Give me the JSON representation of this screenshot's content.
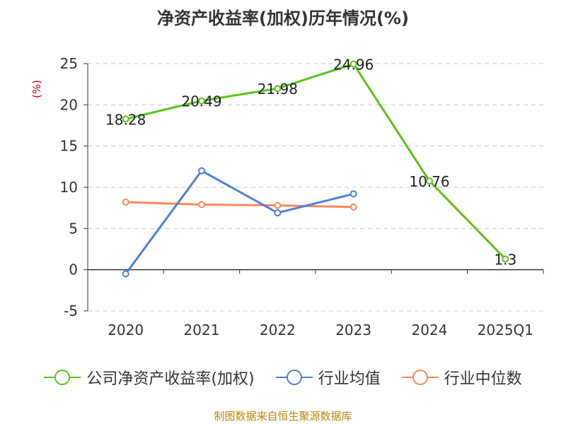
{
  "chart_data": {
    "type": "line",
    "title": "净资产收益率(加权)历年情况(%)",
    "ylabel": "(%)",
    "xlabel": "",
    "categories": [
      "2020",
      "2021",
      "2022",
      "2023",
      "2024",
      "2025Q1"
    ],
    "ylim": [
      -5,
      25
    ],
    "yticks": [
      "-5",
      "0",
      "5",
      "10",
      "15",
      "20",
      "25"
    ],
    "grid": true,
    "legend_position": "bottom",
    "series": [
      {
        "name": "公司净资产收益率(加权)",
        "color": "#5ac21b",
        "values": [
          18.28,
          20.49,
          21.98,
          24.96,
          10.76,
          1.3
        ],
        "labels": [
          "18.28",
          "20.49",
          "21.98",
          "24.96",
          "10.76",
          "1.3"
        ]
      },
      {
        "name": "行业均值",
        "color": "#4f7fd8",
        "values": [
          -0.5,
          12.0,
          6.9,
          9.2,
          null,
          null
        ]
      },
      {
        "name": "行业中位数",
        "color": "#f5895a",
        "values": [
          8.2,
          7.9,
          7.8,
          7.6,
          null,
          null
        ]
      }
    ]
  },
  "source": "制图数据来自恒生聚源数据库"
}
